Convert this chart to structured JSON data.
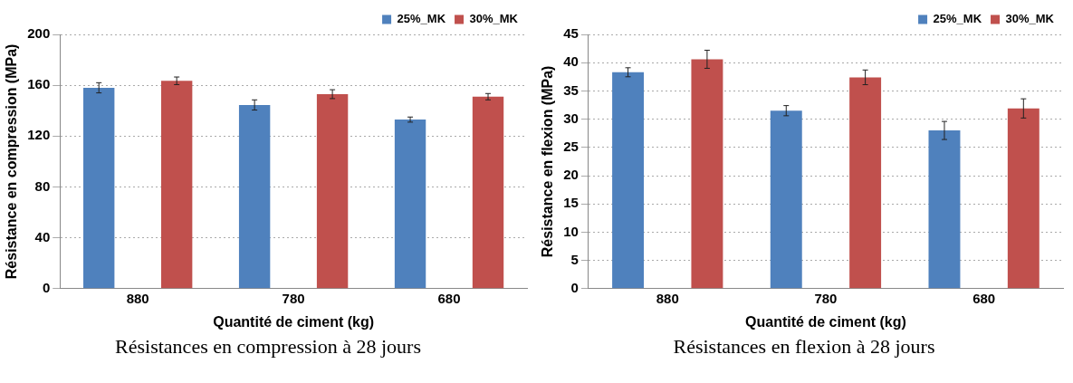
{
  "chart_data": [
    {
      "type": "bar",
      "xlabel": "Quantité de ciment (kg)",
      "ylabel": "Résistance en compression (MPa)",
      "categories": [
        "880",
        "780",
        "680"
      ],
      "series": [
        {
          "name": "25%_MK",
          "color": "#4f81bd",
          "values": [
            158,
            144.5,
            133
          ],
          "errors": [
            4,
            4,
            2
          ]
        },
        {
          "name": "30%_MK",
          "color": "#c0504d",
          "values": [
            163.5,
            153,
            151
          ],
          "errors": [
            3,
            3.5,
            2.5
          ]
        }
      ],
      "ylim": [
        0,
        200
      ],
      "yticks": [
        0,
        40,
        80,
        120,
        160,
        200
      ],
      "grid": "y",
      "legend": "top right",
      "annotations": [
        "Résistances en compression à 28 jours"
      ]
    },
    {
      "type": "bar",
      "xlabel": "Quantité de ciment (kg)",
      "ylabel": "Résistance en flexion (MPa)",
      "categories": [
        "880",
        "780",
        "680"
      ],
      "series": [
        {
          "name": "25%_MK",
          "color": "#4f81bd",
          "values": [
            38.3,
            31.5,
            28
          ],
          "errors": [
            0.8,
            0.9,
            1.6
          ]
        },
        {
          "name": "30%_MK",
          "color": "#c0504d",
          "values": [
            40.6,
            37.4,
            31.9
          ],
          "errors": [
            1.6,
            1.3,
            1.7
          ]
        }
      ],
      "ylim": [
        0,
        45
      ],
      "yticks": [
        0,
        5,
        10,
        15,
        20,
        25,
        30,
        35,
        40,
        45
      ],
      "grid": "y",
      "legend": "top right",
      "annotations": [
        "Résistances en flexion à 28 jours"
      ]
    }
  ]
}
